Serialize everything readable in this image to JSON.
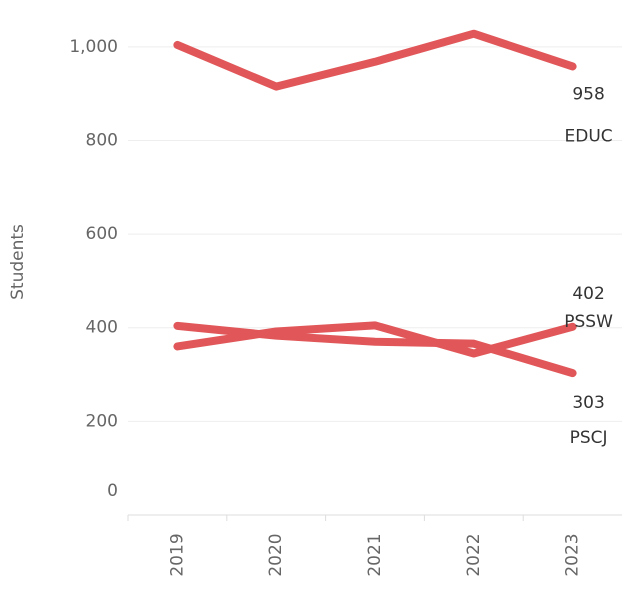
{
  "chart_data": {
    "type": "line",
    "y_label": "Students",
    "categories": [
      "2019",
      "2020",
      "2021",
      "2022",
      "2023"
    ],
    "series": [
      {
        "name": "EDUC",
        "color": "#e15759",
        "values": [
          1004,
          915,
          968,
          1028,
          958
        ]
      },
      {
        "name": "PSSW",
        "color": "#e15759",
        "values": [
          360,
          392,
          405,
          345,
          402
        ]
      },
      {
        "name": "PSCJ",
        "color": "#e15759",
        "values": [
          404,
          383,
          370,
          366,
          303
        ]
      }
    ],
    "ylim": [
      0,
      1100
    ],
    "yticks": [
      0,
      200,
      400,
      600,
      800,
      {
        "value": 1000,
        "label": "1,000"
      }
    ],
    "grid": true
  }
}
